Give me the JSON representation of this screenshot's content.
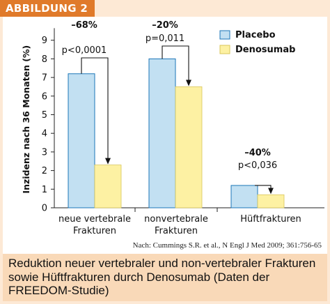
{
  "header": {
    "badge": "ABBILDUNG 2"
  },
  "colors": {
    "placebo_fill": "#c2e0f2",
    "placebo_stroke": "#1b76b8",
    "denosumab_fill": "#fdf1a3",
    "axis": "#222222"
  },
  "chart_data": {
    "type": "bar",
    "ylabel": "Inzidenz nach 36 Monaten (%)",
    "ylim": [
      0,
      9.5
    ],
    "yticks": [
      0,
      1,
      2,
      3,
      4,
      5,
      6,
      7,
      8,
      9
    ],
    "grid": false,
    "legend_position": "top-right",
    "categories": [
      "neue vertebrale Frakturen",
      "nonvertebrale Frakturen",
      "Hüftfrakturen"
    ],
    "category_lines": [
      [
        "neue vertebrale",
        "Frakturen"
      ],
      [
        "nonvertebrale",
        "Frakturen"
      ],
      [
        "Hüftfrakturen"
      ]
    ],
    "series": [
      {
        "name": "Placebo",
        "values": [
          7.2,
          8.0,
          1.2
        ]
      },
      {
        "name": "Denosumab",
        "values": [
          2.3,
          6.5,
          0.7
        ]
      }
    ],
    "annotations": [
      {
        "percent": "–68%",
        "p": "p<0,0001"
      },
      {
        "percent": "–20%",
        "p": "p=0,011"
      },
      {
        "percent": "–40%",
        "p": "p<0,036"
      }
    ]
  },
  "source": "Nach: Cummings S.R. et al., N Engl J Med 2009; 361:756-65",
  "caption": "Reduktion neuer vertebraler und non-vertebraler Frakturen sowie Hüftfrakturen durch Denosumab (Daten der FREEDOM-Studie)"
}
